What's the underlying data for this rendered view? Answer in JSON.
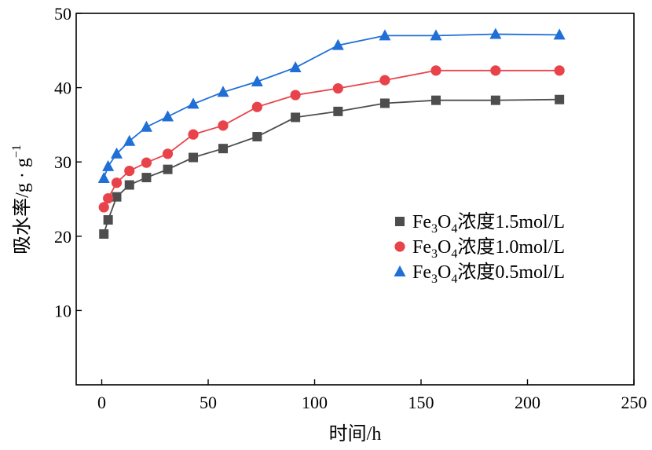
{
  "chart_data": {
    "type": "line",
    "title": "",
    "xlabel": "时间/h",
    "ylabel": {
      "main": "吸水率/g · g",
      "superscript": "−1"
    },
    "xlim": [
      -12,
      250
    ],
    "ylim": [
      0,
      50
    ],
    "xticks": [
      0,
      50,
      100,
      150,
      200,
      250
    ],
    "yticks": [
      10,
      20,
      30,
      40,
      50
    ],
    "grid": false,
    "legend_position": "center-right",
    "series": [
      {
        "name": "Fe3O4浓度1.5mol/L",
        "legend": {
          "a": "Fe",
          "sub1": "3",
          "b": "O",
          "sub2": "4",
          "c": "浓度1.5mol/L"
        },
        "color": "#4d4d4d",
        "marker": "square",
        "x": [
          1,
          3,
          7,
          13,
          21,
          31,
          43,
          57,
          73,
          91,
          111,
          133,
          157,
          185,
          215
        ],
        "y": [
          20.3,
          22.2,
          25.3,
          26.9,
          27.9,
          29.0,
          30.6,
          31.8,
          33.4,
          36.0,
          36.8,
          37.9,
          38.3,
          38.3,
          38.4
        ]
      },
      {
        "name": "Fe3O4浓度1.0mol/L",
        "legend": {
          "a": "Fe",
          "sub1": "3",
          "b": "O",
          "sub2": "4",
          "c": "浓度1.0mol/L"
        },
        "color": "#e8434a",
        "marker": "circle",
        "x": [
          1,
          3,
          7,
          13,
          21,
          31,
          43,
          57,
          73,
          91,
          111,
          133,
          157,
          185,
          215
        ],
        "y": [
          23.9,
          25.1,
          27.2,
          28.8,
          29.9,
          31.1,
          33.7,
          34.9,
          37.4,
          39.0,
          39.9,
          41.0,
          42.3,
          42.3,
          42.3
        ]
      },
      {
        "name": "Fe3O4浓度0.5mol/L",
        "legend": {
          "a": "Fe",
          "sub1": "3",
          "b": "O",
          "sub2": "4",
          "c": "浓度0.5mol/L"
        },
        "color": "#1f6fd6",
        "marker": "triangle",
        "x": [
          1,
          3,
          7,
          13,
          21,
          31,
          43,
          57,
          73,
          91,
          111,
          133,
          157,
          185,
          215
        ],
        "y": [
          27.8,
          29.4,
          31.1,
          32.8,
          34.7,
          36.1,
          37.8,
          39.4,
          40.8,
          42.7,
          45.7,
          47.0,
          47.0,
          47.2,
          47.1
        ]
      }
    ]
  }
}
